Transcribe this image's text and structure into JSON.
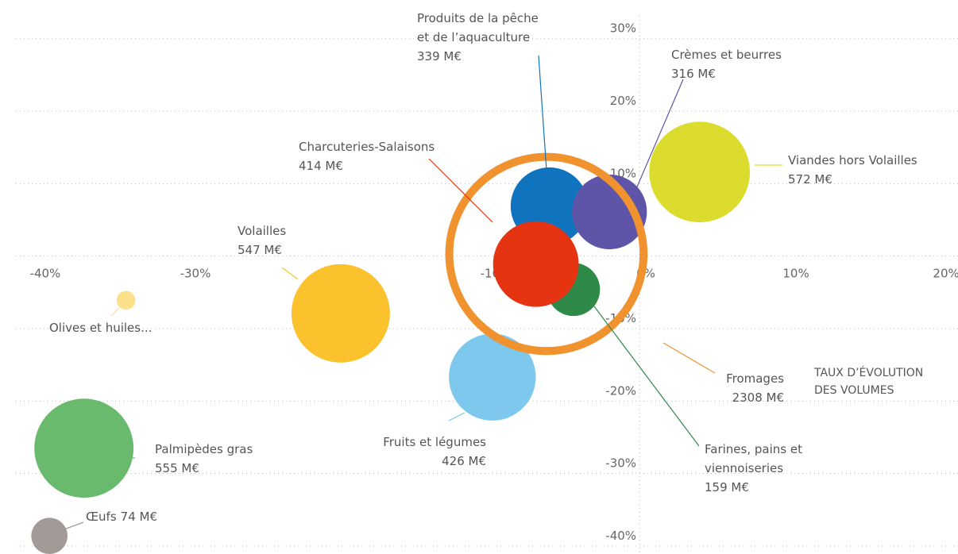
{
  "chart_data": {
    "type": "bubble",
    "x": [
      -6.0,
      -2.0,
      4.0,
      -6.9,
      -19.9,
      -34.2,
      -6.2,
      -4.4,
      -9.8,
      -37.0,
      -39.3
    ],
    "values": [
      6.9,
      6.1,
      11.6,
      -1.1,
      -7.9,
      -6.1,
      0.3,
      -4.6,
      -16.7,
      -26.5,
      -38.6
    ],
    "sizes": [
      339,
      316,
      572,
      414,
      547,
      20,
      2308,
      159,
      426,
      555,
      74
    ],
    "labels": [
      [
        "Produits de la pêche",
        "et de l’aquaculture"
      ],
      [
        "Crèmes et beurres"
      ],
      [
        "Viandes hors Volailles"
      ],
      [
        "Charcuteries-Salaisons"
      ],
      [
        "Volailles"
      ],
      [
        "Olives et huiles..."
      ],
      [
        "Fromages"
      ],
      [
        "Farines, pains et",
        "viennoiseries"
      ],
      [
        "Fruits et légumes"
      ],
      [
        "Palmipèdes gras"
      ],
      [
        "Œufs"
      ]
    ],
    "size_labels": [
      "339 M€",
      "316 M€",
      "572 M€",
      "414 M€",
      "547 M€",
      null,
      "2308 M€",
      "159 M€",
      "426 M€",
      "555 M€",
      "74 M€"
    ],
    "colors": [
      "#0f74bd",
      "#5f55a8",
      "#dcdc2e",
      "#e63312",
      "#fbc22e",
      "#fde08a",
      "#f0922e",
      "#2f8a4a",
      "#7ec8ee",
      "#6aba6e",
      "#a39a98"
    ],
    "outline": [
      false,
      false,
      false,
      false,
      false,
      false,
      true,
      false,
      false,
      false,
      false
    ],
    "annotation": [
      "TAUX D’ÉVOLUTION",
      "DES VOLUMES"
    ],
    "xlim": [
      -41.5,
      21
    ],
    "ylim": [
      -40,
      31.5
    ],
    "xticks": [
      {
        "value": -40,
        "label": "-40%"
      },
      {
        "value": -30,
        "label": "-30%"
      },
      {
        "value": -20,
        "label": "-20%"
      },
      {
        "value": -10,
        "label": "-10%"
      },
      {
        "value": 0,
        "label": "0%"
      },
      {
        "value": 10,
        "label": "10%"
      },
      {
        "value": 20,
        "label": "20%"
      }
    ],
    "yticks": [
      {
        "value": 30,
        "label": "30%"
      },
      {
        "value": 20,
        "label": "20%"
      },
      {
        "value": 10,
        "label": "10%"
      },
      {
        "value": -10,
        "label": "-10%"
      },
      {
        "value": -20,
        "label": "-20%"
      },
      {
        "value": -30,
        "label": "-30%"
      },
      {
        "value": -40,
        "label": "-40%"
      }
    ],
    "grid": true
  }
}
